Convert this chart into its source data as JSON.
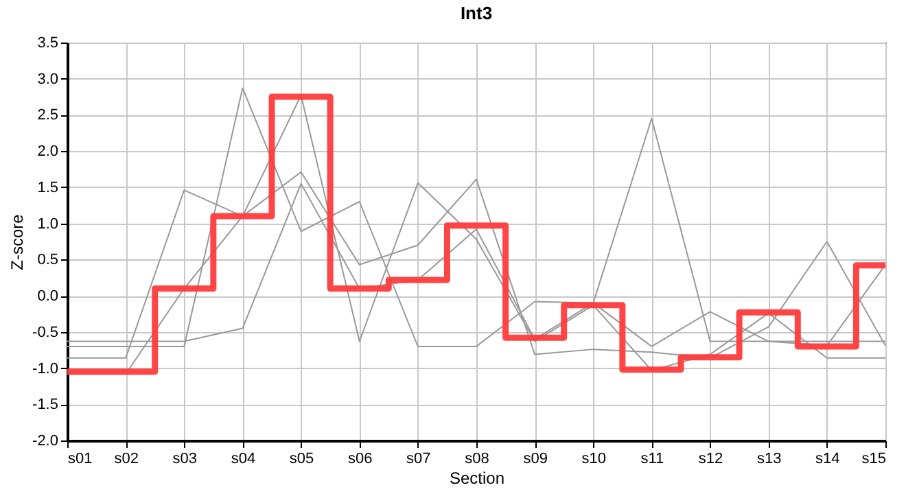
{
  "chart_data": {
    "type": "line",
    "title": "Int3",
    "xlabel": "Section",
    "ylabel": "Z-score",
    "categories": [
      "s01",
      "s02",
      "s03",
      "s04",
      "s05",
      "s06",
      "s07",
      "s08",
      "s09",
      "s10",
      "s11",
      "s12",
      "s13",
      "s14",
      "s15"
    ],
    "series": [
      {
        "color": "#999999",
        "values": [
          -0.7,
          -0.7,
          -0.7,
          2.87,
          0.89,
          1.3,
          -0.7,
          -0.7,
          -0.08,
          -0.1,
          2.45,
          -0.63,
          -0.63,
          -0.63,
          -0.63
        ]
      },
      {
        "color": "#999999",
        "values": [
          -0.86,
          -0.86,
          1.46,
          1.1,
          2.77,
          -0.63,
          1.56,
          0.78,
          -0.63,
          -0.13,
          -1.03,
          -0.81,
          -0.24,
          -0.86,
          -0.86
        ]
      },
      {
        "color": "#999999",
        "values": [
          -1.08,
          -1.08,
          0.1,
          1.1,
          1.71,
          0.43,
          0.7,
          1.61,
          -0.81,
          -0.74,
          -0.78,
          -0.86,
          -0.43,
          0.75,
          -0.69
        ]
      },
      {
        "color": "#999999",
        "values": [
          -0.63,
          -0.63,
          -0.63,
          -0.45,
          1.55,
          0.1,
          0.22,
          0.92,
          -0.6,
          -0.1,
          -0.7,
          -0.22,
          -0.63,
          -0.69,
          0.43
        ]
      },
      {
        "type": "step",
        "color": "#ff3b3b",
        "values": [
          -1.05,
          -1.05,
          0.1,
          1.1,
          2.75,
          0.1,
          0.22,
          0.97,
          -0.58,
          -0.13,
          -1.02,
          -0.85,
          -0.23,
          -0.7,
          0.42
        ]
      }
    ],
    "ylim": [
      -2.0,
      3.5
    ],
    "yticks": [
      {
        "value": -2,
        "label": "-2.0"
      },
      {
        "value": -1.5,
        "label": "-1.5"
      },
      {
        "value": -1,
        "label": "-1.0"
      },
      {
        "value": -0.5,
        "label": "-0.5"
      },
      {
        "value": 0,
        "label": "0.0"
      },
      {
        "value": 0.5,
        "label": "0.5"
      },
      {
        "value": 1,
        "label": "1.0"
      },
      {
        "value": 1.5,
        "label": "1.5"
      },
      {
        "value": 2,
        "label": "2.0"
      },
      {
        "value": 2.5,
        "label": "2.5"
      },
      {
        "value": 3,
        "label": "3.0"
      },
      {
        "value": 3.5,
        "label": "3.5"
      }
    ],
    "grid": true,
    "marker": "none",
    "line_style": "solid"
  }
}
